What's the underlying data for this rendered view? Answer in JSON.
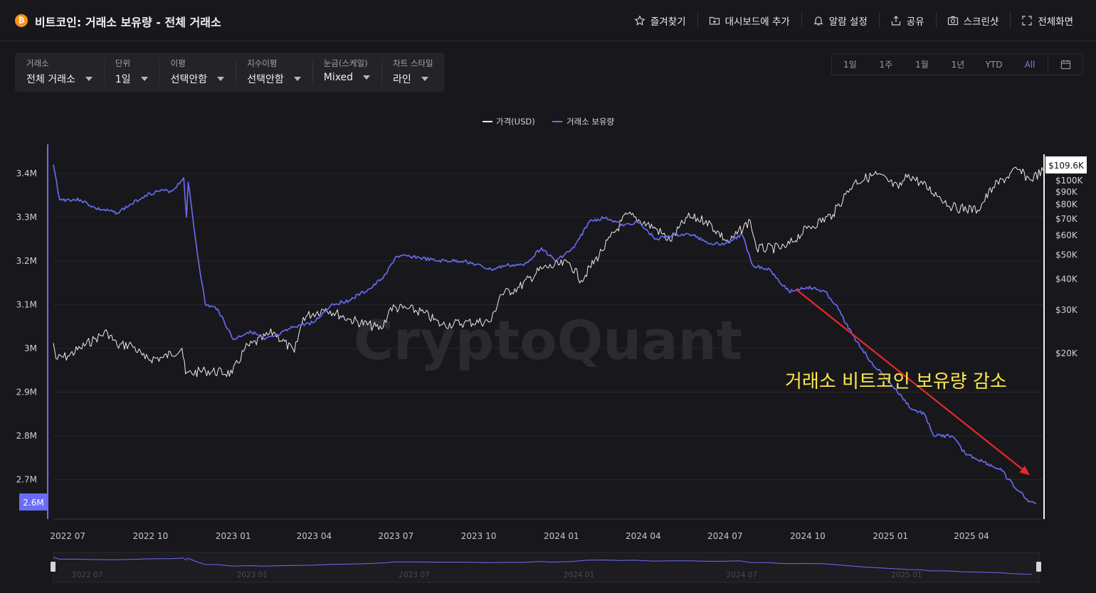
{
  "header": {
    "logo_icon": "bitcoin-icon",
    "title": "비트코인: 거래소 보유량 - 전체 거래소",
    "actions": [
      {
        "icon": "star-icon",
        "label": "즐겨찾기"
      },
      {
        "icon": "folder-plus-icon",
        "label": "대시보드에 추가"
      },
      {
        "icon": "bell-icon",
        "label": "알람 설정"
      },
      {
        "icon": "share-icon",
        "label": "공유"
      },
      {
        "icon": "camera-icon",
        "label": "스크린샷"
      },
      {
        "icon": "fullscreen-icon",
        "label": "전체화면"
      }
    ]
  },
  "filters": [
    {
      "label": "거래소",
      "value": "전체 거래소"
    },
    {
      "label": "단위",
      "value": "1일"
    },
    {
      "label": "이평",
      "value": "선택안함"
    },
    {
      "label": "지수이평",
      "value": "선택안함"
    },
    {
      "label": "눈금(스케일)",
      "value": "Mixed"
    },
    {
      "label": "차트 스타일",
      "value": "라인"
    }
  ],
  "ranges": {
    "options": [
      "1일",
      "1주",
      "1월",
      "1년",
      "YTD",
      "All"
    ],
    "active": "All",
    "calendar_icon": "calendar-icon"
  },
  "colors": {
    "background": "#18181c",
    "price_line": "#ececec",
    "reserve_line": "#6b6cf6",
    "arrow": "#e8282a",
    "annotation": "#ffe84a"
  },
  "chart_data": {
    "type": "line",
    "watermark": "CryptoQuant",
    "legend": {
      "placement": "top-center",
      "items": [
        "가격(USD)",
        "거래소 보유량"
      ]
    },
    "x_ticks": [
      "2022 07",
      "2022 10",
      "2023 01",
      "2023 04",
      "2023 07",
      "2023 10",
      "2024 01",
      "2024 04",
      "2024 07",
      "2024 10",
      "2025 01",
      "2025 04"
    ],
    "x_range": [
      "2022-06-15",
      "2025-06-20"
    ],
    "y_left": {
      "ticks": [
        "3.4M",
        "3.3M",
        "3.2M",
        "3.1M",
        "3M",
        "2.9M",
        "2.8M",
        "2.7M"
      ],
      "range": [
        2.6,
        3.45
      ],
      "unit": "M BTC",
      "current_label": "2.6M"
    },
    "y_right": {
      "scale": "log",
      "ticks": [
        "$100K",
        "$90K",
        "$80K",
        "$70K",
        "$60K",
        "$50K",
        "$40K",
        "$30K",
        "$20K"
      ],
      "current_label": "$109.6K",
      "range": [
        16000,
        115000
      ]
    },
    "series": [
      {
        "name": "가격(USD)",
        "axis": "right",
        "points": [
          [
            "2022-06-15",
            22000
          ],
          [
            "2022-06-18",
            19000
          ],
          [
            "2022-07-01",
            19500
          ],
          [
            "2022-07-15",
            21000
          ],
          [
            "2022-08-01",
            23000
          ],
          [
            "2022-08-14",
            24400
          ],
          [
            "2022-08-25",
            21500
          ],
          [
            "2022-09-10",
            21700
          ],
          [
            "2022-09-25",
            19000
          ],
          [
            "2022-10-15",
            19200
          ],
          [
            "2022-11-05",
            21000
          ],
          [
            "2022-11-09",
            16500
          ],
          [
            "2022-12-01",
            17000
          ],
          [
            "2022-12-31",
            16600
          ],
          [
            "2023-01-14",
            20900
          ],
          [
            "2023-02-15",
            24400
          ],
          [
            "2023-03-10",
            20200
          ],
          [
            "2023-03-20",
            28000
          ],
          [
            "2023-04-14",
            30400
          ],
          [
            "2023-05-10",
            27500
          ],
          [
            "2023-06-15",
            25100
          ],
          [
            "2023-06-25",
            30600
          ],
          [
            "2023-07-15",
            30300
          ],
          [
            "2023-08-01",
            29200
          ],
          [
            "2023-08-20",
            26100
          ],
          [
            "2023-09-15",
            26600
          ],
          [
            "2023-10-15",
            27000
          ],
          [
            "2023-10-25",
            34500
          ],
          [
            "2023-11-15",
            37000
          ],
          [
            "2023-12-10",
            44000
          ],
          [
            "2024-01-10",
            46500
          ],
          [
            "2024-01-23",
            39500
          ],
          [
            "2024-02-15",
            52000
          ],
          [
            "2024-03-14",
            73000
          ],
          [
            "2024-04-15",
            64000
          ],
          [
            "2024-05-01",
            57000
          ],
          [
            "2024-05-20",
            71000
          ],
          [
            "2024-06-10",
            69000
          ],
          [
            "2024-07-05",
            56000
          ],
          [
            "2024-07-29",
            69000
          ],
          [
            "2024-08-05",
            53000
          ],
          [
            "2024-09-06",
            53500
          ],
          [
            "2024-09-30",
            64000
          ],
          [
            "2024-10-29",
            73000
          ],
          [
            "2024-11-12",
            88000
          ],
          [
            "2024-11-22",
            98500
          ],
          [
            "2024-12-17",
            106000
          ],
          [
            "2025-01-10",
            93000
          ],
          [
            "2025-01-21",
            106000
          ],
          [
            "2025-02-25",
            86000
          ],
          [
            "2025-03-11",
            78000
          ],
          [
            "2025-04-08",
            76000
          ],
          [
            "2025-04-25",
            94000
          ],
          [
            "2025-05-22",
            111000
          ],
          [
            "2025-06-05",
            101000
          ],
          [
            "2025-06-20",
            109600
          ]
        ]
      },
      {
        "name": "거래소 보유량",
        "axis": "left",
        "points": [
          [
            "2022-06-15",
            3.42
          ],
          [
            "2022-06-22",
            3.34
          ],
          [
            "2022-07-15",
            3.34
          ],
          [
            "2022-08-01",
            3.32
          ],
          [
            "2022-08-25",
            3.31
          ],
          [
            "2022-09-10",
            3.33
          ],
          [
            "2022-09-25",
            3.35
          ],
          [
            "2022-10-10",
            3.36
          ],
          [
            "2022-10-25",
            3.36
          ],
          [
            "2022-11-07",
            3.39
          ],
          [
            "2022-11-10",
            3.3
          ],
          [
            "2022-11-12",
            3.38
          ],
          [
            "2022-11-22",
            3.22
          ],
          [
            "2022-12-01",
            3.1
          ],
          [
            "2022-12-15",
            3.09
          ],
          [
            "2023-01-01",
            3.02
          ],
          [
            "2023-01-20",
            3.04
          ],
          [
            "2023-02-05",
            3.02
          ],
          [
            "2023-02-20",
            3.03
          ],
          [
            "2023-03-10",
            3.05
          ],
          [
            "2023-04-01",
            3.06
          ],
          [
            "2023-04-20",
            3.1
          ],
          [
            "2023-05-10",
            3.11
          ],
          [
            "2023-06-05",
            3.14
          ],
          [
            "2023-06-20",
            3.17
          ],
          [
            "2023-07-01",
            3.21
          ],
          [
            "2023-07-20",
            3.21
          ],
          [
            "2023-08-15",
            3.2
          ],
          [
            "2023-09-15",
            3.2
          ],
          [
            "2023-10-15",
            3.18
          ],
          [
            "2023-11-01",
            3.19
          ],
          [
            "2023-11-20",
            3.19
          ],
          [
            "2023-12-10",
            3.23
          ],
          [
            "2023-12-25",
            3.2
          ],
          [
            "2024-01-15",
            3.23
          ],
          [
            "2024-02-01",
            3.29
          ],
          [
            "2024-02-20",
            3.3
          ],
          [
            "2024-03-10",
            3.28
          ],
          [
            "2024-03-25",
            3.29
          ],
          [
            "2024-04-15",
            3.25
          ],
          [
            "2024-05-05",
            3.26
          ],
          [
            "2024-05-25",
            3.26
          ],
          [
            "2024-06-15",
            3.24
          ],
          [
            "2024-07-01",
            3.24
          ],
          [
            "2024-07-20",
            3.26
          ],
          [
            "2024-08-01",
            3.19
          ],
          [
            "2024-08-20",
            3.18
          ],
          [
            "2024-09-10",
            3.13
          ],
          [
            "2024-09-30",
            3.14
          ],
          [
            "2024-10-20",
            3.13
          ],
          [
            "2024-11-01",
            3.1
          ],
          [
            "2024-11-20",
            3.03
          ],
          [
            "2024-12-10",
            2.97
          ],
          [
            "2025-01-01",
            2.92
          ],
          [
            "2025-01-25",
            2.86
          ],
          [
            "2025-02-08",
            2.85
          ],
          [
            "2025-02-18",
            2.8
          ],
          [
            "2025-03-10",
            2.8
          ],
          [
            "2025-03-25",
            2.76
          ],
          [
            "2025-04-15",
            2.74
          ],
          [
            "2025-05-05",
            2.72
          ],
          [
            "2025-05-20",
            2.68
          ],
          [
            "2025-06-05",
            2.65
          ],
          [
            "2025-06-12",
            2.645
          ]
        ]
      }
    ],
    "annotations": [
      {
        "type": "arrow",
        "from": [
          "2024-09-18",
          3.135
        ],
        "to": [
          "2025-06-05",
          2.71
        ],
        "color": "#e8282a"
      },
      {
        "type": "text",
        "text": "거래소 비트코인 보유량 감소",
        "color": "#ffe84a"
      }
    ],
    "navigator": {
      "ticks": [
        "2022 07",
        "2023 01",
        "2023 07",
        "2024 01",
        "2024 07",
        "2025 01"
      ]
    }
  }
}
